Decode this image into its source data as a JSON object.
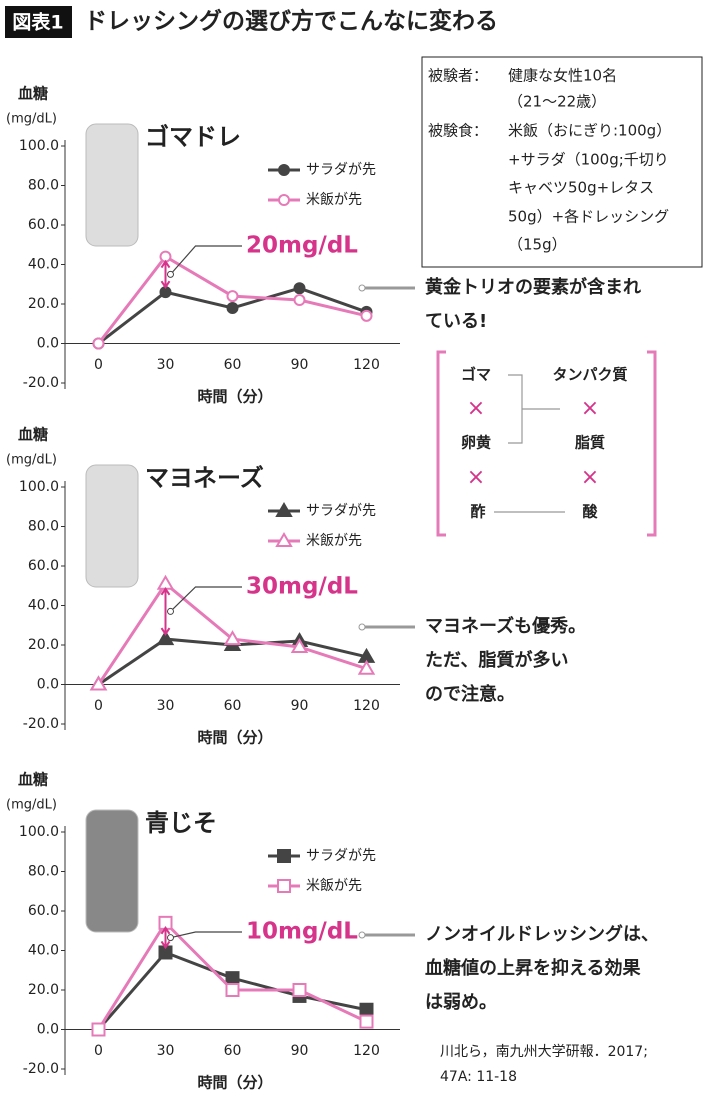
{
  "header": {
    "tag": "図表1",
    "title": "ドレッシングの選び方でこんなに変わる"
  },
  "info": {
    "subjects_label": "被験者：",
    "subjects": [
      "健康な女性10名",
      "（21～22歳）"
    ],
    "meal_label": "被験食：",
    "meal": [
      "米飯（おにぎり:100g）",
      "+サラダ（100g;千切り",
      "キャベツ50g+レタス",
      "50g）+各ドレッシング",
      "（15g）"
    ]
  },
  "diagram": {
    "left": [
      "ゴマ",
      "卵黄",
      "酢"
    ],
    "right": [
      "タンパク質",
      "脂質",
      "酸"
    ],
    "operator": "×"
  },
  "citation": [
    "川北ら，南九州大学研報．2017;",
    "47A: 11-18"
  ],
  "chart_data": [
    {
      "type": "line",
      "title": "ゴマドレ",
      "y_label": "血糖",
      "y_unit": "(mg/dL)",
      "x_label": "時間（分）",
      "marker": "circle",
      "x": [
        0,
        30,
        60,
        90,
        120
      ],
      "xlim": [
        -15,
        135
      ],
      "xticks": [
        0,
        30,
        60,
        90,
        120
      ],
      "ylim": [
        -20,
        100
      ],
      "yticks": [
        {
          "value": -20,
          "label": "-20.0"
        },
        {
          "value": 0,
          "label": "0.0"
        },
        {
          "value": 20,
          "label": "20.0"
        },
        {
          "value": 40,
          "label": "40.0"
        },
        {
          "value": 60,
          "label": "60.0"
        },
        {
          "value": 80,
          "label": "80.0"
        },
        {
          "value": 100,
          "label": "100.0"
        }
      ],
      "series": [
        {
          "name": "サラダが先",
          "color": "#444444",
          "values": [
            0,
            26,
            18,
            28,
            16
          ]
        },
        {
          "name": "米飯が先",
          "color": "#e67ab8",
          "values": [
            0,
            44,
            24,
            22,
            14
          ]
        }
      ],
      "annotation": "20mg/dL",
      "note": [
        "黄金トリオの要素が含まれ",
        "ている!"
      ]
    },
    {
      "type": "line",
      "title": "マヨネーズ",
      "y_label": "血糖",
      "y_unit": "(mg/dL)",
      "x_label": "時間（分）",
      "marker": "triangle",
      "x": [
        0,
        30,
        60,
        90,
        120
      ],
      "xlim": [
        -15,
        135
      ],
      "xticks": [
        0,
        30,
        60,
        90,
        120
      ],
      "ylim": [
        -20,
        100
      ],
      "yticks": [
        {
          "value": -20,
          "label": "-20.0"
        },
        {
          "value": 0,
          "label": "0.0"
        },
        {
          "value": 20,
          "label": "20.0"
        },
        {
          "value": 40,
          "label": "40.0"
        },
        {
          "value": 60,
          "label": "60.0"
        },
        {
          "value": 80,
          "label": "80.0"
        },
        {
          "value": 100,
          "label": "100.0"
        }
      ],
      "series": [
        {
          "name": "サラダが先",
          "color": "#444444",
          "values": [
            0,
            23,
            20,
            22,
            14
          ]
        },
        {
          "name": "米飯が先",
          "color": "#e67ab8",
          "values": [
            0,
            51,
            23,
            19,
            8
          ]
        }
      ],
      "annotation": "30mg/dL",
      "note": [
        "マヨネーズも優秀。",
        "ただ、脂質が多い",
        "ので注意。"
      ]
    },
    {
      "type": "line",
      "title": "青じそ",
      "y_label": "血糖",
      "y_unit": "(mg/dL)",
      "x_label": "時間（分）",
      "marker": "square",
      "x": [
        0,
        30,
        60,
        90,
        120
      ],
      "xlim": [
        -15,
        135
      ],
      "xticks": [
        0,
        30,
        60,
        90,
        120
      ],
      "ylim": [
        -20,
        100
      ],
      "yticks": [
        {
          "value": -20,
          "label": "-20.0"
        },
        {
          "value": 0,
          "label": "0.0"
        },
        {
          "value": 20,
          "label": "20.0"
        },
        {
          "value": 40,
          "label": "40.0"
        },
        {
          "value": 60,
          "label": "60.0"
        },
        {
          "value": 80,
          "label": "80.0"
        },
        {
          "value": 100,
          "label": "100.0"
        }
      ],
      "series": [
        {
          "name": "サラダが先",
          "color": "#444444",
          "values": [
            0,
            39,
            26,
            17,
            10
          ]
        },
        {
          "name": "米飯が先",
          "color": "#e67ab8",
          "values": [
            0,
            54,
            20,
            20,
            4
          ]
        }
      ],
      "annotation": "10mg/dL",
      "note": [
        "ノンオイルドレッシングは、",
        "血糖値の上昇を抑える効果",
        "は弱め。"
      ]
    }
  ]
}
